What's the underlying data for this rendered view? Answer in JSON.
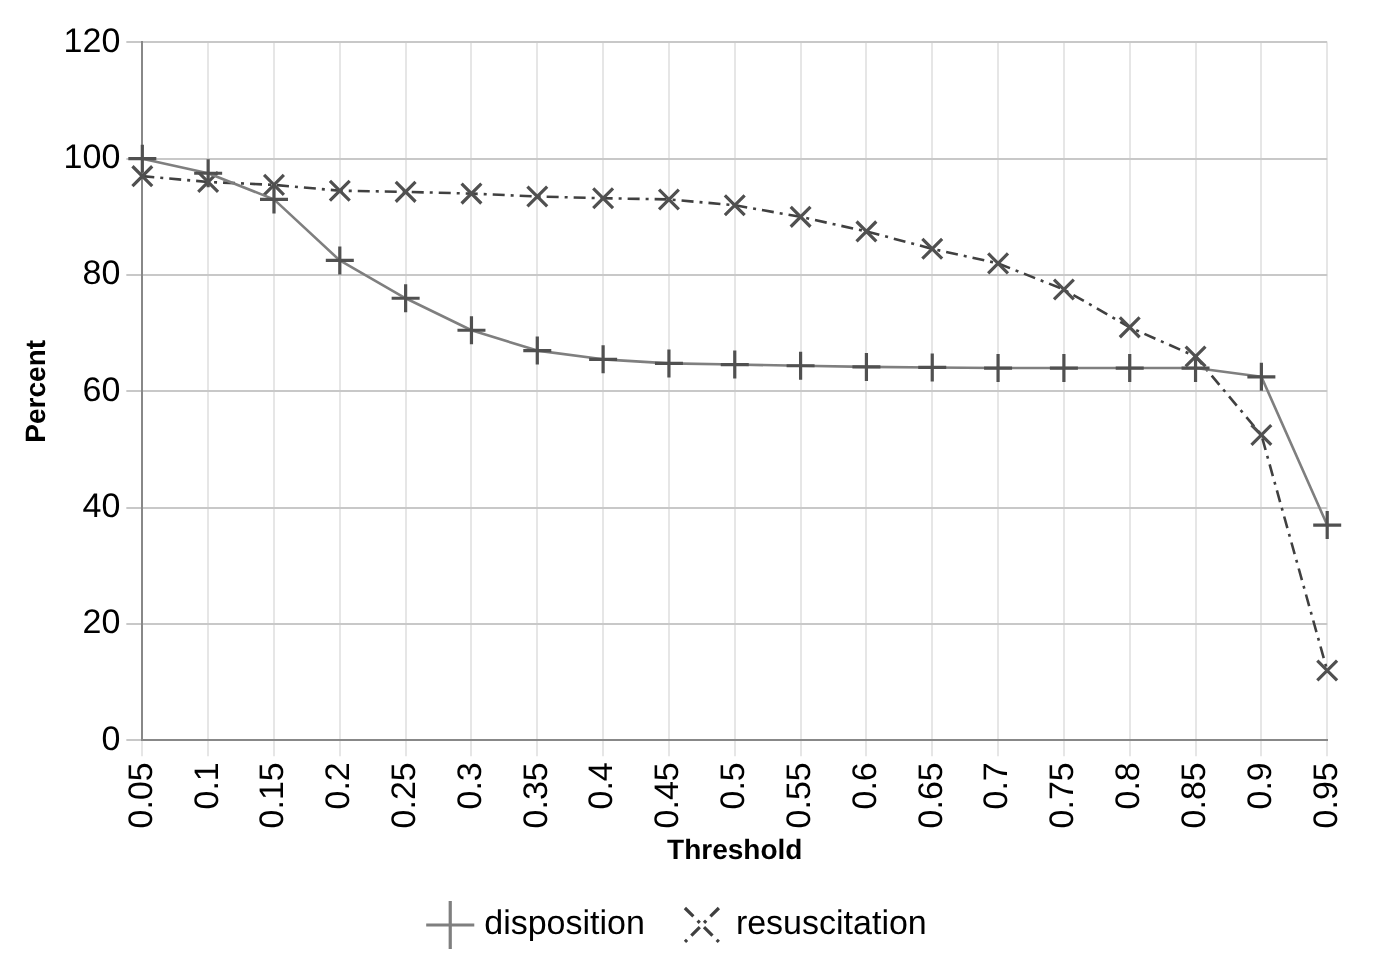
{
  "chart_data": {
    "type": "line",
    "xlabel": "Threshold",
    "ylabel": "Percent",
    "categories": [
      "0.05",
      "0.1",
      "0.15",
      "0.2",
      "0.25",
      "0.3",
      "0.35",
      "0.4",
      "0.45",
      "0.5",
      "0.55",
      "0.6",
      "0.65",
      "0.7",
      "0.75",
      "0.8",
      "0.85",
      "0.9",
      "0.95"
    ],
    "series": [
      {
        "name": "disposition",
        "color": "#7f7f7f",
        "marker": "cross",
        "line_style": "solid",
        "values": [
          100,
          97.5,
          93,
          82.5,
          76,
          70.5,
          67,
          65.5,
          64.8,
          64.6,
          64.4,
          64.2,
          64.1,
          64,
          64,
          64,
          64,
          62.5,
          37
        ]
      },
      {
        "name": "resuscitation",
        "color": "#404040",
        "marker": "x",
        "line_style": "dashdot",
        "values": [
          97,
          96,
          95.5,
          94.5,
          94.3,
          94,
          93.5,
          93.2,
          93,
          92,
          90,
          87.5,
          84.5,
          82,
          77.5,
          71,
          66,
          52.5,
          12
        ]
      }
    ],
    "ylim": [
      0,
      120
    ],
    "yticks": [
      0,
      20,
      40,
      60,
      80,
      100,
      120
    ],
    "grid": true,
    "legend": "bottom"
  }
}
